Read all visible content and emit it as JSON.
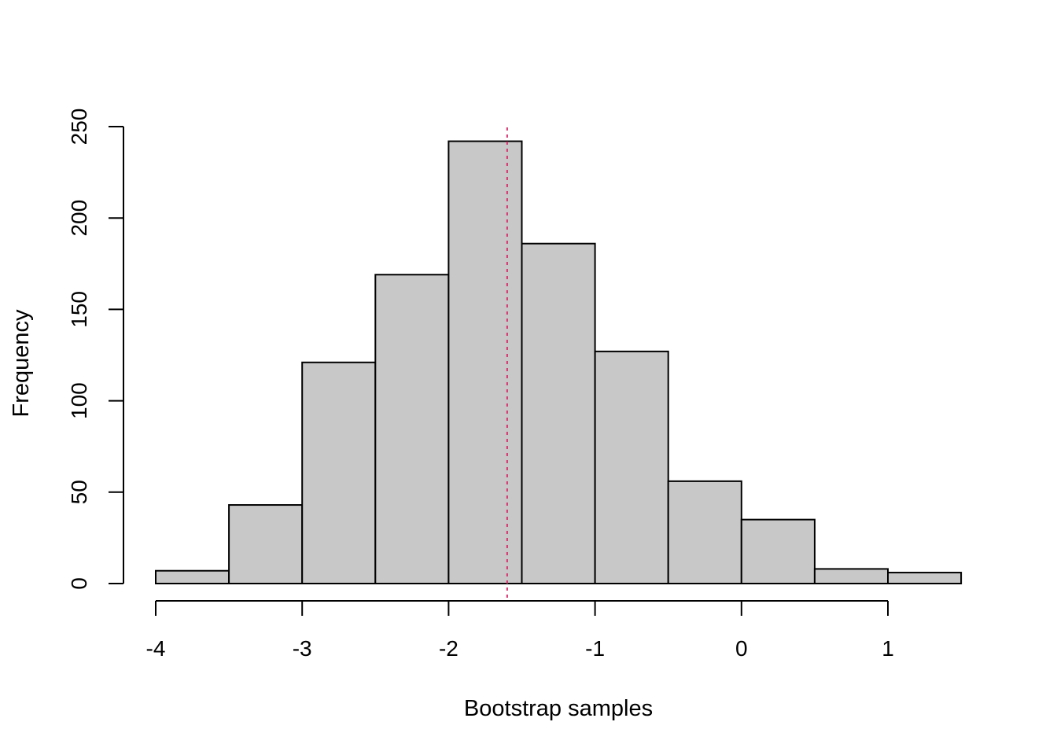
{
  "chart_data": {
    "type": "bar",
    "subtype": "histogram",
    "xlabel": "Bootstrap samples",
    "ylabel": "Frequency",
    "bins": [
      {
        "from": -4.0,
        "to": -3.5,
        "count": 7
      },
      {
        "from": -3.5,
        "to": -3.0,
        "count": 43
      },
      {
        "from": -3.0,
        "to": -2.5,
        "count": 121
      },
      {
        "from": -2.5,
        "to": -2.0,
        "count": 169
      },
      {
        "from": -2.0,
        "to": -1.5,
        "count": 242
      },
      {
        "from": -1.5,
        "to": -1.0,
        "count": 186
      },
      {
        "from": -1.0,
        "to": -0.5,
        "count": 127
      },
      {
        "from": -0.5,
        "to": 0.0,
        "count": 56
      },
      {
        "from": 0.0,
        "to": 0.5,
        "count": 35
      },
      {
        "from": 0.5,
        "to": 1.0,
        "count": 8
      },
      {
        "from": 1.0,
        "to": 1.5,
        "count": 6
      }
    ],
    "xlim": [
      -4,
      1.5
    ],
    "ylim": [
      0,
      250
    ],
    "x_ticks": [
      -4,
      -3,
      -2,
      -1,
      0,
      1
    ],
    "x_tick_labels": [
      "-4",
      "-3",
      "-2",
      "-1",
      "0",
      "1"
    ],
    "y_ticks": [
      0,
      50,
      100,
      150,
      200,
      250
    ],
    "y_tick_labels": [
      "0",
      "50",
      "100",
      "150",
      "200",
      "250"
    ],
    "reference_line": {
      "x": -1.6,
      "color": "#d6336c",
      "style": "dotted"
    },
    "bar_fill": "#c8c8c8",
    "bar_stroke": "#000000",
    "grid": false
  }
}
